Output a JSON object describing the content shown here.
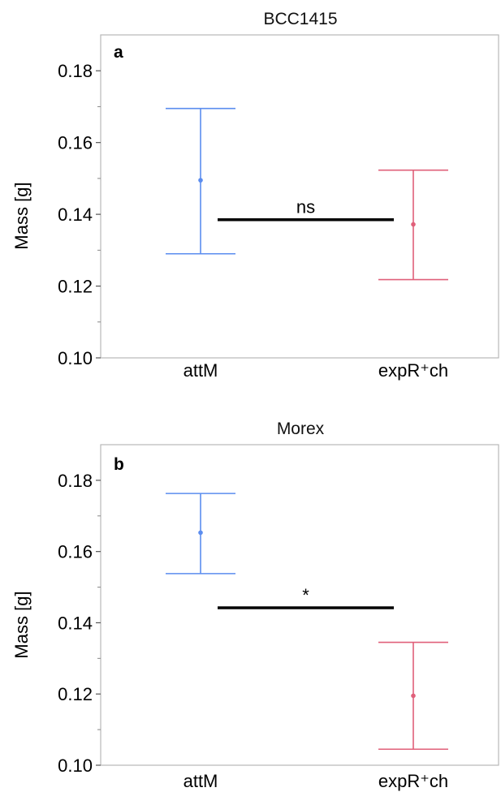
{
  "chart_data": [
    {
      "type": "errorbar",
      "title": "BCC1415",
      "panel_label": "a",
      "ylabel": "Mass [g]",
      "ylim": [
        0.1,
        0.19
      ],
      "yticks": [
        0.1,
        0.12,
        0.14,
        0.16,
        0.18
      ],
      "ytick_labels": [
        "0.10",
        "0.12",
        "0.14",
        "0.16",
        "0.18"
      ],
      "categories": [
        "attM",
        "expR⁺ch"
      ],
      "points": [
        {
          "category": "attM",
          "mean": 0.1495,
          "lower": 0.129,
          "upper": 0.1695,
          "color": "#5b8def"
        },
        {
          "category": "expR⁺ch",
          "mean": 0.1372,
          "lower": 0.1218,
          "upper": 0.1523,
          "color": "#e0607a"
        }
      ],
      "comparison": {
        "label": "ns",
        "y": 0.1385
      }
    },
    {
      "type": "errorbar",
      "title": "Morex",
      "panel_label": "b",
      "ylabel": "Mass [g]",
      "ylim": [
        0.1,
        0.19
      ],
      "yticks": [
        0.1,
        0.12,
        0.14,
        0.16,
        0.18
      ],
      "ytick_labels": [
        "0.10",
        "0.12",
        "0.14",
        "0.16",
        "0.18"
      ],
      "categories": [
        "attM",
        "expR⁺ch"
      ],
      "points": [
        {
          "category": "attM",
          "mean": 0.1653,
          "lower": 0.1538,
          "upper": 0.1763,
          "color": "#5b8def"
        },
        {
          "category": "expR⁺ch",
          "mean": 0.1195,
          "lower": 0.1045,
          "upper": 0.1345,
          "color": "#e0607a"
        }
      ],
      "comparison": {
        "label": "*",
        "y": 0.1442
      }
    }
  ]
}
